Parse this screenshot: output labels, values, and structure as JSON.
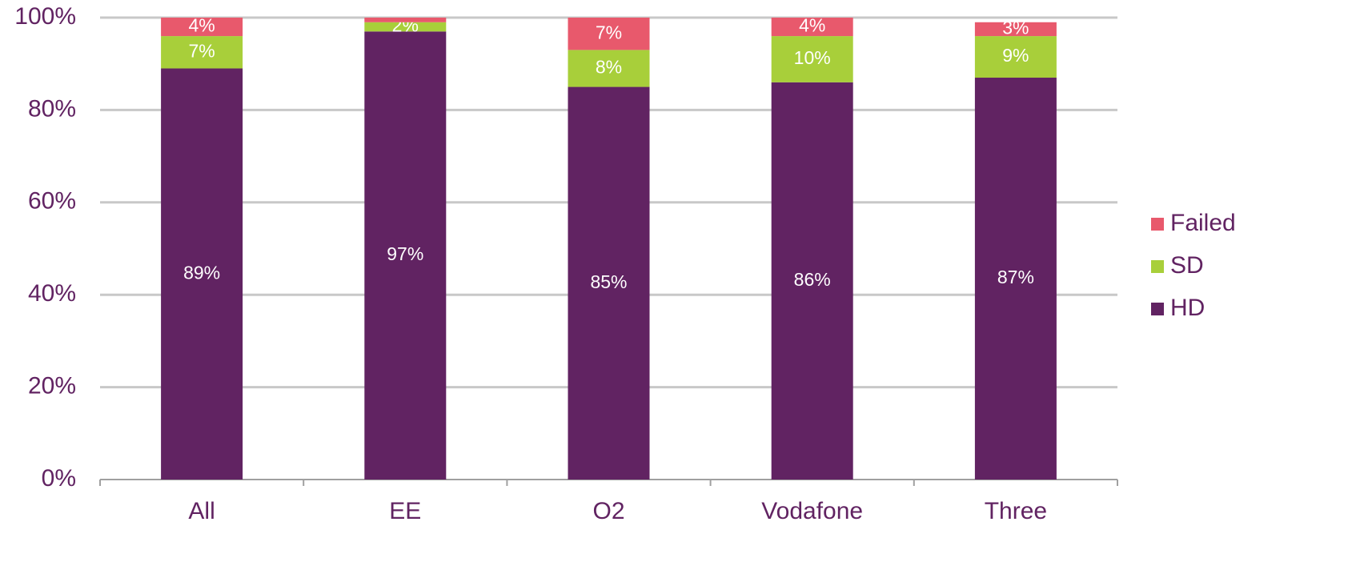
{
  "chart_data": {
    "type": "stacked_bar",
    "categories": [
      "All",
      "EE",
      "O2",
      "Vodafone",
      "Three"
    ],
    "series": [
      {
        "name": "HD",
        "color": "#612362",
        "values": [
          89,
          97,
          85,
          86,
          87
        ],
        "value_labels": [
          "89%",
          "97%",
          "85%",
          "86%",
          "87%"
        ]
      },
      {
        "name": "SD",
        "color": "#a8cf3a",
        "values": [
          7,
          2,
          8,
          10,
          9
        ],
        "value_labels": [
          "7%",
          "2%",
          "8%",
          "10%",
          "9%"
        ]
      },
      {
        "name": "Failed",
        "color": "#e8596c",
        "values": [
          4,
          1,
          7,
          4,
          3
        ],
        "value_labels": [
          "4%",
          null,
          "7%",
          "4%",
          "3%"
        ]
      }
    ],
    "ylim": [
      0,
      100
    ],
    "yticks": [
      {
        "value": 0,
        "label": "0%"
      },
      {
        "value": 20,
        "label": "20%"
      },
      {
        "value": 40,
        "label": "40%"
      },
      {
        "value": 60,
        "label": "60%"
      },
      {
        "value": 80,
        "label": "80%"
      },
      {
        "value": 100,
        "label": "100%"
      }
    ],
    "grid": true,
    "legend": "right"
  }
}
